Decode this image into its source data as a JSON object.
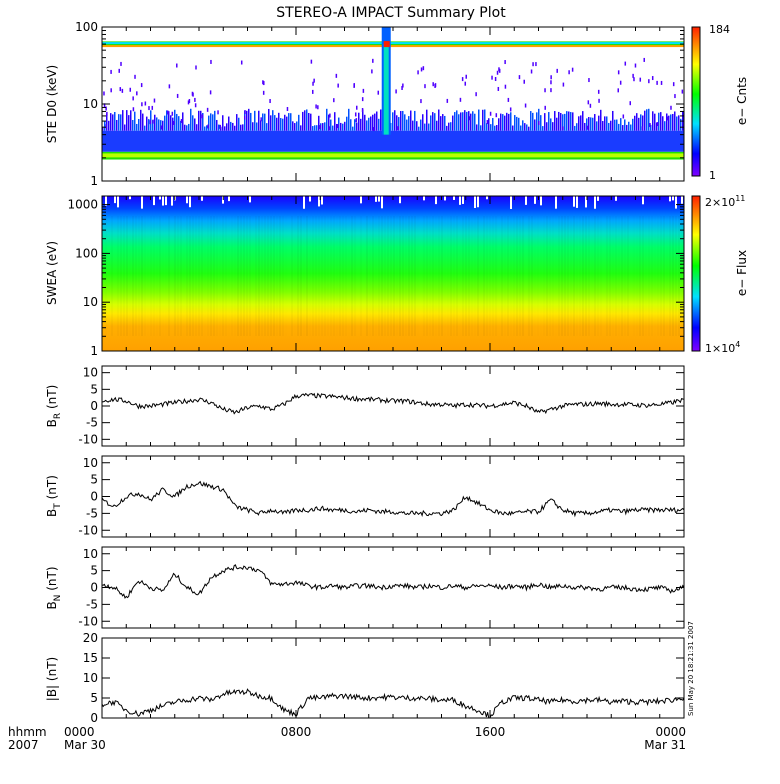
{
  "title": "STEREO-A IMPACT Summary Plot",
  "time_axis": {
    "row_label_1": "hhmm",
    "row_label_2": "2007",
    "ticks": [
      {
        "hhmm": "0000",
        "date": "Mar 30"
      },
      {
        "hhmm": "0800",
        "date": ""
      },
      {
        "hhmm": "1600",
        "date": ""
      },
      {
        "hhmm": "0000",
        "date": "Mar 31"
      }
    ]
  },
  "stamp": "Sun May 20 18:21:31 2007",
  "colorbars": {
    "ste": {
      "max_label": "184",
      "min_label": "1",
      "title": "e− Cnts"
    },
    "swea": {
      "max_base": "2×10",
      "max_exp": "11",
      "min_base": "1×10",
      "min_exp": "4",
      "title": "e− Flux"
    }
  },
  "panels": [
    {
      "ylabel": "STE D0 (keV)",
      "yticks": [
        "1",
        "10",
        "100"
      ]
    },
    {
      "ylabel": "SWEA (eV)",
      "yticks": [
        "1",
        "10",
        "100",
        "1000"
      ]
    },
    {
      "ylabel_main": "B",
      "ylabel_sub": "R",
      "ylabel_unit": " (nT)",
      "yticks": [
        "10",
        "5",
        "0",
        "-5",
        "-10"
      ]
    },
    {
      "ylabel_main": "B",
      "ylabel_sub": "T",
      "ylabel_unit": " (nT)",
      "yticks": [
        "10",
        "5",
        "0",
        "-5",
        "-10"
      ]
    },
    {
      "ylabel_main": "B",
      "ylabel_sub": "N",
      "ylabel_unit": " (nT)",
      "yticks": [
        "10",
        "5",
        "0",
        "-5",
        "-10"
      ]
    },
    {
      "ylabel": "|B| (nT)",
      "yticks": [
        "20",
        "15",
        "10",
        "5",
        "0"
      ]
    }
  ],
  "chart_data": [
    {
      "type": "heatmap",
      "ylabel": "STE D0 (keV)",
      "y_scale": "log",
      "ylim": [
        1,
        100
      ],
      "xlim_hours": [
        0,
        24
      ],
      "colorbar": {
        "title": "e− Cnts",
        "range": [
          1,
          184
        ]
      },
      "bands_keV": [
        {
          "range": [
            1.9,
            2.4
          ],
          "level": "high"
        },
        {
          "range": [
            2.4,
            4.5
          ],
          "level": "low-moderate"
        },
        {
          "range": [
            55,
            65
          ],
          "level": "high"
        }
      ],
      "burst": {
        "time_hours": 11.7,
        "range_keV": [
          4,
          100
        ]
      }
    },
    {
      "type": "heatmap",
      "ylabel": "SWEA (eV)",
      "y_scale": "log",
      "ylim": [
        1,
        1500
      ],
      "xlim_hours": [
        0,
        24
      ],
      "colorbar": {
        "title": "e− Flux",
        "range": [
          10000,
          200000000000
        ]
      },
      "flux_profile": [
        {
          "energy_eV": 1,
          "level": 0.88
        },
        {
          "energy_eV": 5,
          "level": 0.78
        },
        {
          "energy_eV": 30,
          "level": 0.5
        },
        {
          "energy_eV": 200,
          "level": 0.38
        },
        {
          "energy_eV": 700,
          "level": 0.18
        },
        {
          "energy_eV": 1500,
          "level": 0.04
        }
      ]
    },
    {
      "type": "line",
      "ylabel": "BR (nT)",
      "ylim": [
        -12,
        12
      ],
      "x_hours": [
        0,
        0.5,
        1,
        1.5,
        2,
        2.5,
        3,
        3.5,
        4,
        4.5,
        5,
        5.5,
        6,
        6.5,
        7,
        7.5,
        8,
        8.5,
        9,
        9.5,
        10,
        10.5,
        11,
        11.5,
        12,
        12.5,
        13,
        13.5,
        14,
        14.5,
        15,
        15.5,
        16,
        16.5,
        17,
        17.5,
        18,
        18.5,
        19,
        19.5,
        20,
        20.5,
        21,
        21.5,
        22,
        22.5,
        23,
        23.5,
        24
      ],
      "values": [
        1.5,
        2,
        1.5,
        0,
        0,
        0.5,
        1,
        1.5,
        2,
        1,
        -1,
        -2,
        -0.5,
        0,
        -1,
        0.5,
        3,
        3.2,
        3,
        2.8,
        2.5,
        2.2,
        2,
        1.8,
        1.5,
        1.5,
        1,
        0.5,
        0.5,
        0,
        0.5,
        0.2,
        0,
        0.5,
        1,
        0,
        -2,
        -1,
        0,
        0.5,
        0.5,
        0.8,
        0.5,
        0.5,
        0.3,
        0.2,
        0.5,
        1,
        2
      ]
    },
    {
      "type": "line",
      "ylabel": "BT (nT)",
      "ylim": [
        -12,
        12
      ],
      "x_hours": [
        0,
        0.5,
        1,
        1.5,
        2,
        2.5,
        3,
        3.5,
        4,
        4.5,
        5,
        5.5,
        6,
        6.5,
        7,
        7.5,
        8,
        8.5,
        9,
        9.5,
        10,
        10.5,
        11,
        11.5,
        12,
        12.5,
        13,
        13.5,
        14,
        14.5,
        15,
        15.5,
        16,
        16.5,
        17,
        17.5,
        18,
        18.5,
        19,
        19.5,
        20,
        20.5,
        21,
        21.5,
        22,
        22.5,
        23,
        23.5,
        24
      ],
      "values": [
        -1,
        -3,
        0,
        1,
        -1,
        2,
        0,
        3,
        4,
        3,
        2,
        -3,
        -4,
        -5,
        -4,
        -5,
        -4,
        -4,
        -3.5,
        -4,
        -4,
        -4.5,
        -4,
        -4.5,
        -4.5,
        -5,
        -5,
        -5,
        -5,
        -4,
        0,
        -2,
        -4,
        -5,
        -5,
        -4.5,
        -4.5,
        -1,
        -4,
        -5,
        -5,
        -4.5,
        -4,
        -4.5,
        -4,
        -4,
        -4,
        -4,
        -4
      ]
    },
    {
      "type": "line",
      "ylabel": "BN (nT)",
      "ylim": [
        -12,
        12
      ],
      "x_hours": [
        0,
        0.5,
        1,
        1.5,
        2,
        2.5,
        3,
        3.5,
        4,
        4.5,
        5,
        5.5,
        6,
        6.5,
        7,
        7.5,
        8,
        8.5,
        9,
        9.5,
        10,
        10.5,
        11,
        11.5,
        12,
        12.5,
        13,
        13.5,
        14,
        14.5,
        15,
        15.5,
        16,
        16.5,
        17,
        17.5,
        18,
        18.5,
        19,
        19.5,
        20,
        20.5,
        21,
        21.5,
        22,
        22.5,
        23,
        23.5,
        24
      ],
      "values": [
        1,
        0,
        -3,
        2,
        0,
        -1,
        4,
        0,
        -2,
        3,
        5,
        6,
        6,
        5,
        1,
        1,
        1.5,
        0.5,
        0,
        0.5,
        0,
        0.5,
        0.5,
        0,
        0.5,
        0.5,
        0,
        0.5,
        0,
        0.5,
        0,
        0.5,
        0.5,
        0,
        0.5,
        0,
        1,
        0,
        0.5,
        0,
        0,
        -0.5,
        0,
        0,
        -0.5,
        -0.5,
        0,
        -1,
        0
      ]
    },
    {
      "type": "line",
      "ylabel": "|B| (nT)",
      "ylim": [
        0,
        20
      ],
      "x_hours": [
        0,
        0.5,
        1,
        1.5,
        2,
        2.5,
        3,
        3.5,
        4,
        4.5,
        5,
        5.5,
        6,
        6.5,
        7,
        7.5,
        8,
        8.5,
        9,
        9.5,
        10,
        10.5,
        11,
        11.5,
        12,
        12.5,
        13,
        13.5,
        14,
        14.5,
        15,
        15.5,
        16,
        16.5,
        17,
        17.5,
        18,
        18.5,
        19,
        19.5,
        20,
        20.5,
        21,
        21.5,
        22,
        22.5,
        23,
        23.5,
        24
      ],
      "values": [
        3.5,
        4,
        2,
        1,
        2,
        3,
        4,
        4.5,
        5,
        4.5,
        6,
        6.5,
        6.5,
        5.5,
        5,
        2,
        1,
        5,
        5,
        5.5,
        5.5,
        5.2,
        5,
        5.2,
        5.2,
        5,
        5,
        4.8,
        4.5,
        4.5,
        3,
        2,
        0.5,
        4,
        5,
        5,
        4.5,
        4,
        4.5,
        4.2,
        4.5,
        4.5,
        4,
        4.2,
        4,
        4,
        4.2,
        4.5,
        5
      ]
    }
  ]
}
